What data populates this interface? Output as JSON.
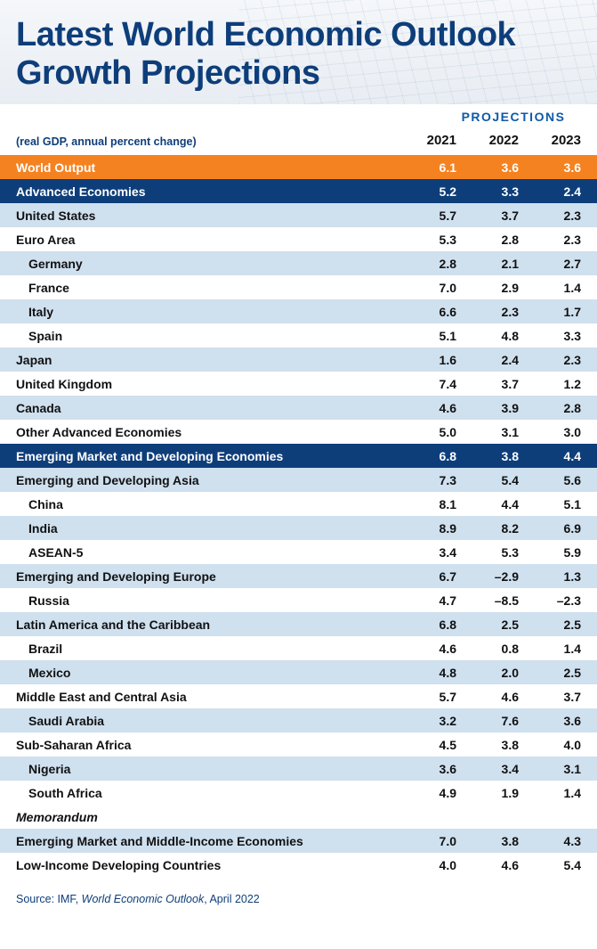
{
  "title": "Latest World Economic Outlook Growth Projections",
  "projections_label": "PROJECTIONS",
  "note": "(real GDP, annual percent change)",
  "years": [
    "2021",
    "2022",
    "2023"
  ],
  "colors": {
    "title": "#0e3e7a",
    "orange": "#f58220",
    "navy": "#0e3e7a",
    "light_blue": "#cfe0ef",
    "white": "#ffffff",
    "text": "#111111",
    "proj_label": "#0e5aa8"
  },
  "rows": [
    {
      "style": "orange",
      "label": "World Output",
      "indent": 0,
      "v": [
        "6.1",
        "3.6",
        "3.6"
      ]
    },
    {
      "style": "navy",
      "label": "Advanced Economies",
      "indent": 0,
      "v": [
        "5.2",
        "3.3",
        "2.4"
      ]
    },
    {
      "style": "lblue",
      "label": "United States",
      "indent": 0,
      "v": [
        "5.7",
        "3.7",
        "2.3"
      ]
    },
    {
      "style": "white",
      "label": "Euro Area",
      "indent": 0,
      "v": [
        "5.3",
        "2.8",
        "2.3"
      ]
    },
    {
      "style": "lblue",
      "label": "Germany",
      "indent": 1,
      "v": [
        "2.8",
        "2.1",
        "2.7"
      ]
    },
    {
      "style": "white",
      "label": "France",
      "indent": 1,
      "v": [
        "7.0",
        "2.9",
        "1.4"
      ]
    },
    {
      "style": "lblue",
      "label": "Italy",
      "indent": 1,
      "v": [
        "6.6",
        "2.3",
        "1.7"
      ]
    },
    {
      "style": "white",
      "label": "Spain",
      "indent": 1,
      "v": [
        "5.1",
        "4.8",
        "3.3"
      ]
    },
    {
      "style": "lblue",
      "label": "Japan",
      "indent": 0,
      "v": [
        "1.6",
        "2.4",
        "2.3"
      ]
    },
    {
      "style": "white",
      "label": "United Kingdom",
      "indent": 0,
      "v": [
        "7.4",
        "3.7",
        "1.2"
      ]
    },
    {
      "style": "lblue",
      "label": "Canada",
      "indent": 0,
      "v": [
        "4.6",
        "3.9",
        "2.8"
      ]
    },
    {
      "style": "white",
      "label": "Other Advanced Economies",
      "indent": 0,
      "v": [
        "5.0",
        "3.1",
        "3.0"
      ]
    },
    {
      "style": "navy",
      "label": "Emerging Market and Developing Economies",
      "indent": 0,
      "v": [
        "6.8",
        "3.8",
        "4.4"
      ]
    },
    {
      "style": "lblue",
      "label": "Emerging and Developing Asia",
      "indent": 0,
      "v": [
        "7.3",
        "5.4",
        "5.6"
      ]
    },
    {
      "style": "white",
      "label": "China",
      "indent": 1,
      "v": [
        "8.1",
        "4.4",
        "5.1"
      ]
    },
    {
      "style": "lblue",
      "label": "India",
      "indent": 1,
      "v": [
        "8.9",
        "8.2",
        "6.9"
      ]
    },
    {
      "style": "white",
      "label": "ASEAN-5",
      "indent": 1,
      "v": [
        "3.4",
        "5.3",
        "5.9"
      ]
    },
    {
      "style": "lblue",
      "label": "Emerging and Developing Europe",
      "indent": 0,
      "v": [
        "6.7",
        "–2.9",
        "1.3"
      ]
    },
    {
      "style": "white",
      "label": "Russia",
      "indent": 1,
      "v": [
        "4.7",
        "–8.5",
        "–2.3"
      ]
    },
    {
      "style": "lblue",
      "label": "Latin America and the Caribbean",
      "indent": 0,
      "v": [
        "6.8",
        "2.5",
        "2.5"
      ]
    },
    {
      "style": "white",
      "label": "Brazil",
      "indent": 1,
      "v": [
        "4.6",
        "0.8",
        "1.4"
      ]
    },
    {
      "style": "lblue",
      "label": "Mexico",
      "indent": 1,
      "v": [
        "4.8",
        "2.0",
        "2.5"
      ]
    },
    {
      "style": "white",
      "label": "Middle East and Central Asia",
      "indent": 0,
      "v": [
        "5.7",
        "4.6",
        "3.7"
      ]
    },
    {
      "style": "lblue",
      "label": "Saudi Arabia",
      "indent": 1,
      "v": [
        "3.2",
        "7.6",
        "3.6"
      ]
    },
    {
      "style": "white",
      "label": "Sub-Saharan Africa",
      "indent": 0,
      "v": [
        "4.5",
        "3.8",
        "4.0"
      ]
    },
    {
      "style": "lblue",
      "label": "Nigeria",
      "indent": 1,
      "v": [
        "3.6",
        "3.4",
        "3.1"
      ]
    },
    {
      "style": "white",
      "label": "South Africa",
      "indent": 1,
      "v": [
        "4.9",
        "1.9",
        "1.4"
      ]
    },
    {
      "style": "white",
      "label": "Memorandum",
      "indent": 0,
      "memo": true,
      "v": [
        "",
        "",
        ""
      ]
    },
    {
      "style": "lblue",
      "label": "Emerging Market and Middle-Income Economies",
      "indent": 0,
      "v": [
        "7.0",
        "3.8",
        "4.3"
      ]
    },
    {
      "style": "white",
      "label": "Low-Income Developing Countries",
      "indent": 0,
      "v": [
        "4.0",
        "4.6",
        "5.4"
      ]
    }
  ],
  "source": {
    "prefix": "Source: IMF, ",
    "title": "World Economic Outlook",
    "suffix": ", April 2022"
  }
}
